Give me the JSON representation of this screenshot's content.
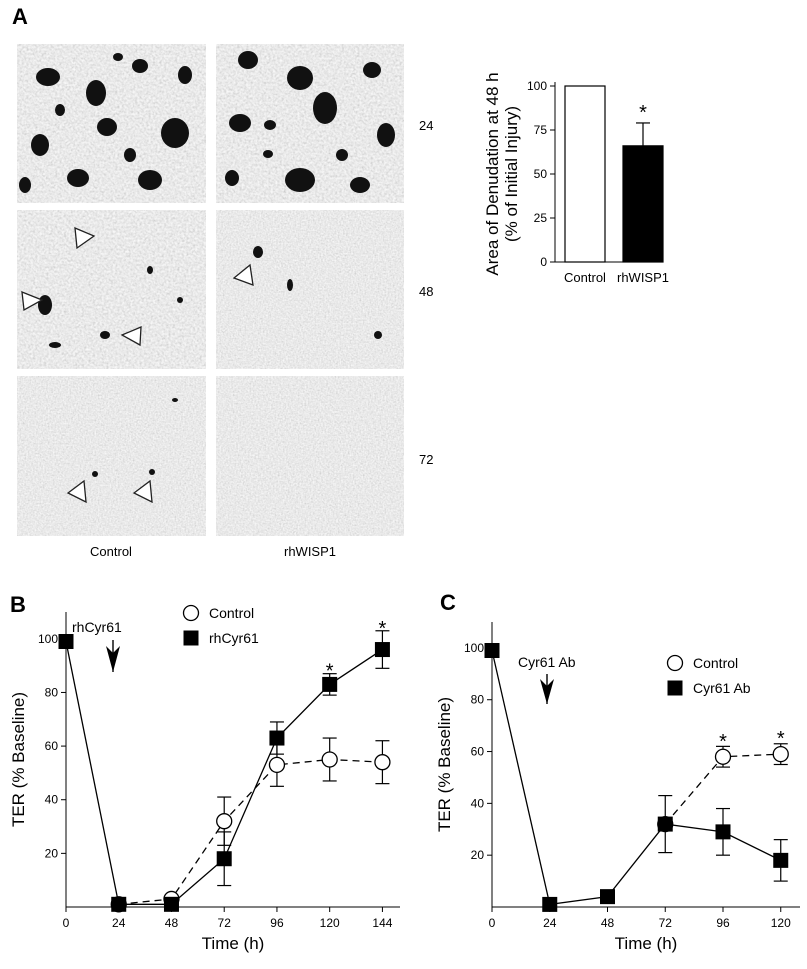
{
  "panels": {
    "a": {
      "letter": "A",
      "row_labels": [
        "24",
        "48",
        "72"
      ],
      "column_labels": [
        "Control",
        "rhWISP1"
      ]
    },
    "b": {
      "letter": "B",
      "arrow_label": "rhCyr61"
    },
    "c": {
      "letter": "C",
      "arrow_label": "Cyr61 Ab"
    }
  },
  "colors": {
    "ink": "#000000",
    "open_marker_fill": "#ffffff"
  },
  "chart_data": [
    {
      "id": "a-bar",
      "type": "bar",
      "categories": [
        "Control",
        "rhWISP1"
      ],
      "values": [
        100,
        66
      ],
      "errors": [
        0,
        13
      ],
      "fills": [
        "#ffffff",
        "#000000"
      ],
      "significance": [
        "",
        "*"
      ],
      "ylabel_lines": [
        "Area of Denudation at 48 h",
        "(% of Initial Injury)"
      ],
      "ylim": [
        0,
        100
      ],
      "yticks": [
        0,
        25,
        50,
        75,
        100
      ],
      "grid": false
    },
    {
      "id": "b-line",
      "type": "line",
      "xlabel": "Time (h)",
      "ylabel": "TER (% Baseline)",
      "xticks": [
        0,
        24,
        48,
        72,
        96,
        120,
        144
      ],
      "yticks": [
        20,
        40,
        60,
        80,
        100
      ],
      "xlim": [
        0,
        152
      ],
      "ylim": [
        0,
        110
      ],
      "grid": false,
      "legend_position": "top-right",
      "series": [
        {
          "name": "Control",
          "marker": "open-circle",
          "dash": "dashed",
          "x": [
            24,
            48,
            72,
            96,
            120,
            144
          ],
          "y": [
            1,
            3,
            32,
            53,
            55,
            54
          ],
          "err": [
            0,
            0,
            9,
            8,
            8,
            8
          ]
        },
        {
          "name": "rhCyr61",
          "marker": "filled-square",
          "dash": "solid",
          "x": [
            0,
            24,
            48,
            72,
            96,
            120,
            144
          ],
          "y": [
            99,
            1,
            1,
            18,
            63,
            83,
            96
          ],
          "err": [
            0,
            0,
            0,
            10,
            6,
            4,
            7
          ]
        }
      ],
      "significance": [
        {
          "x": 120,
          "y": 87,
          "label": "*"
        },
        {
          "x": 144,
          "y": 103,
          "label": "*"
        }
      ]
    },
    {
      "id": "c-line",
      "type": "line",
      "xlabel": "Time (h)",
      "ylabel": "TER (% Baseline)",
      "xticks": [
        0,
        24,
        48,
        72,
        96,
        120
      ],
      "yticks": [
        20,
        40,
        60,
        80,
        100
      ],
      "xlim": [
        0,
        128
      ],
      "ylim": [
        0,
        110
      ],
      "grid": false,
      "legend_position": "top-right",
      "series": [
        {
          "name": "Control",
          "marker": "open-circle",
          "dash": "dashed",
          "x": [
            72,
            96,
            120
          ],
          "y": [
            32,
            58,
            59
          ],
          "err": [
            0,
            4,
            4
          ]
        },
        {
          "name": "Cyr61 Ab",
          "marker": "filled-square",
          "dash": "solid",
          "x": [
            0,
            24,
            48,
            72,
            96,
            120
          ],
          "y": [
            99,
            1,
            4,
            32,
            29,
            18
          ],
          "err": [
            0,
            0,
            0,
            11,
            9,
            8
          ]
        }
      ],
      "significance": [
        {
          "x": 96,
          "y": 63,
          "label": "*"
        },
        {
          "x": 120,
          "y": 64,
          "label": "*"
        }
      ]
    }
  ]
}
